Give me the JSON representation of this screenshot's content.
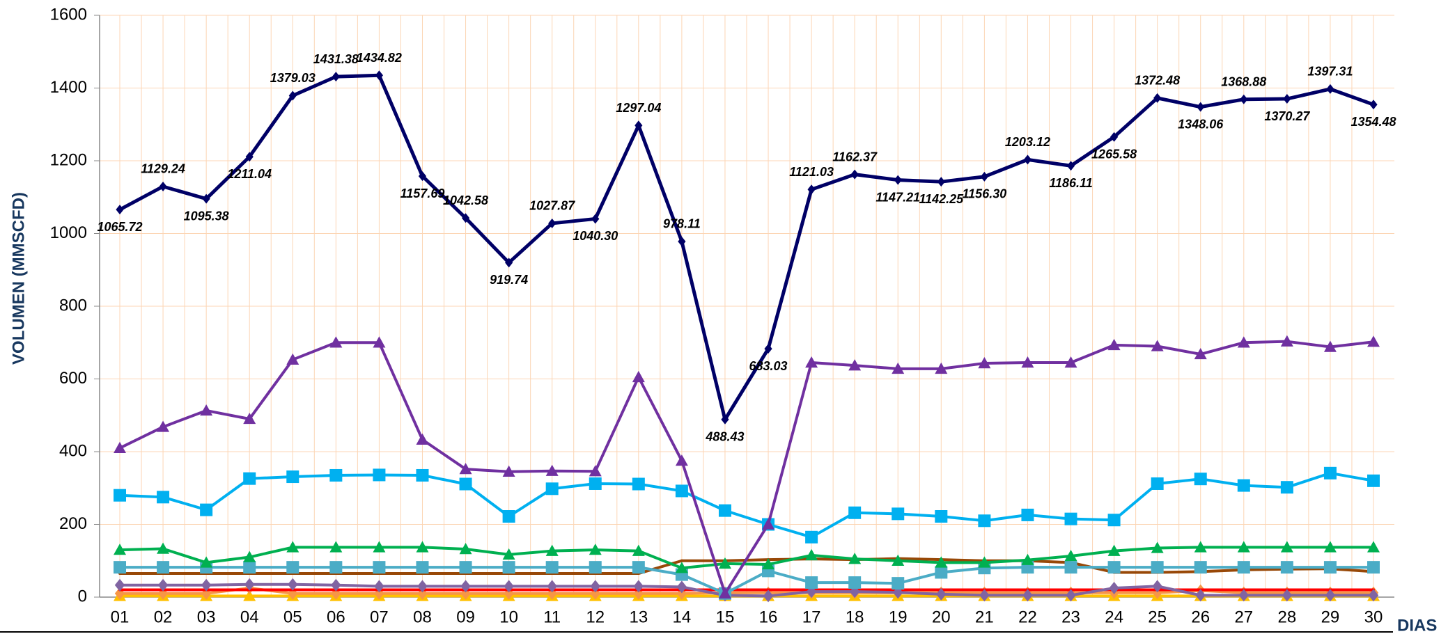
{
  "chart_data": {
    "type": "line",
    "y_label": "VOLUMEN (MMSCFD)",
    "x_label": "DIAS",
    "categories": [
      "01",
      "02",
      "03",
      "04",
      "05",
      "06",
      "07",
      "08",
      "09",
      "10",
      "11",
      "12",
      "13",
      "14",
      "15",
      "16",
      "17",
      "18",
      "19",
      "20",
      "21",
      "22",
      "23",
      "24",
      "25",
      "26",
      "27",
      "28",
      "29",
      "30"
    ],
    "ylim": [
      0,
      1600
    ],
    "yticks": [
      0,
      200,
      400,
      600,
      800,
      1000,
      1200,
      1400,
      1600
    ],
    "grid": true,
    "series": [
      {
        "color": "#000066",
        "marker": "diamond",
        "values": [
          1065.72,
          1129.24,
          1095.38,
          1211.04,
          1379.03,
          1431.38,
          1434.82,
          1157.69,
          1042.58,
          919.74,
          1027.87,
          1040.3,
          1297.04,
          978.11,
          488.43,
          683.03,
          1121.03,
          1162.37,
          1147.21,
          1142.25,
          1156.3,
          1203.12,
          1186.11,
          1265.58,
          1372.48,
          1348.06,
          1368.88,
          1370.27,
          1397.31,
          1354.48
        ],
        "value_labels": [
          "1065.72",
          "1129.24",
          "1095.38",
          "1211.04",
          "1379.03",
          "1431.38",
          "1434.82",
          "1157.69",
          "1042.58",
          "919.74",
          "1027.87",
          "1040.30",
          "1297.04",
          "978.11",
          "488.43",
          "683.03",
          "1121.03",
          "1162.37",
          "1147.21",
          "1142.25",
          "1156.30",
          "1203.12",
          "1186.11",
          "1265.58",
          "1372.48",
          "1348.06",
          "1368.88",
          "1370.27",
          "1397.31",
          "1354.48"
        ]
      },
      {
        "color": "#7030a0",
        "marker": "triangle",
        "values": [
          410,
          468,
          513,
          490,
          653,
          700,
          700,
          433,
          352,
          345,
          347,
          346,
          605,
          375,
          10,
          200,
          645,
          637,
          628,
          628,
          643,
          645,
          645,
          693,
          690,
          668,
          700,
          703,
          688,
          702
        ]
      },
      {
        "color": "#00b0f0",
        "marker": "square",
        "values": [
          280,
          275,
          240,
          326,
          331,
          335,
          336,
          335,
          311,
          222,
          298,
          312,
          311,
          292,
          238,
          200,
          165,
          232,
          229,
          222,
          210,
          226,
          215,
          212,
          312,
          325,
          307,
          302,
          341,
          320
        ]
      },
      {
        "color": "#00b050",
        "marker": "triangle",
        "values": [
          130,
          133,
          95,
          110,
          137,
          137,
          137,
          137,
          132,
          117,
          127,
          130,
          127,
          80,
          92,
          90,
          115,
          105,
          100,
          95,
          95,
          102,
          113,
          127,
          135,
          137,
          137,
          137,
          137,
          137
        ]
      },
      {
        "color": "#4bacc6",
        "marker": "square",
        "values": [
          82,
          82,
          82,
          82,
          82,
          82,
          82,
          82,
          82,
          82,
          82,
          82,
          82,
          62,
          10,
          72,
          40,
          40,
          38,
          68,
          80,
          82,
          82,
          82,
          82,
          82,
          82,
          82,
          82,
          82
        ]
      },
      {
        "color": "#984807",
        "marker": "none",
        "values": [
          65,
          65,
          65,
          65,
          65,
          65,
          65,
          65,
          65,
          65,
          65,
          65,
          65,
          100,
          100,
          103,
          105,
          103,
          106,
          103,
          100,
          100,
          95,
          68,
          68,
          70,
          75,
          77,
          78,
          70
        ]
      },
      {
        "color": "#8064a2",
        "marker": "diamond",
        "values": [
          33,
          33,
          33,
          35,
          35,
          33,
          30,
          30,
          30,
          30,
          30,
          30,
          30,
          28,
          5,
          3,
          15,
          15,
          13,
          8,
          5,
          5,
          5,
          25,
          30,
          5,
          5,
          5,
          5,
          5
        ]
      },
      {
        "color": "#ff0000",
        "marker": "none",
        "values": [
          20,
          20,
          20,
          20,
          20,
          20,
          20,
          20,
          20,
          20,
          20,
          20,
          20,
          20,
          20,
          20,
          20,
          20,
          20,
          20,
          20,
          20,
          20,
          20,
          20,
          20,
          20,
          20,
          20,
          20
        ]
      },
      {
        "color": "#f79646",
        "marker": "diamond",
        "values": [
          10,
          10,
          10,
          25,
          10,
          10,
          10,
          10,
          10,
          10,
          10,
          10,
          10,
          10,
          12,
          12,
          12,
          12,
          12,
          12,
          12,
          12,
          12,
          12,
          12,
          18,
          12,
          12,
          12,
          12
        ]
      },
      {
        "color": "#ffc000",
        "marker": "triangle",
        "values": [
          3,
          3,
          3,
          3,
          3,
          3,
          3,
          3,
          3,
          3,
          3,
          3,
          3,
          3,
          3,
          3,
          3,
          3,
          3,
          3,
          3,
          3,
          3,
          3,
          3,
          3,
          3,
          3,
          3,
          3
        ]
      }
    ]
  }
}
